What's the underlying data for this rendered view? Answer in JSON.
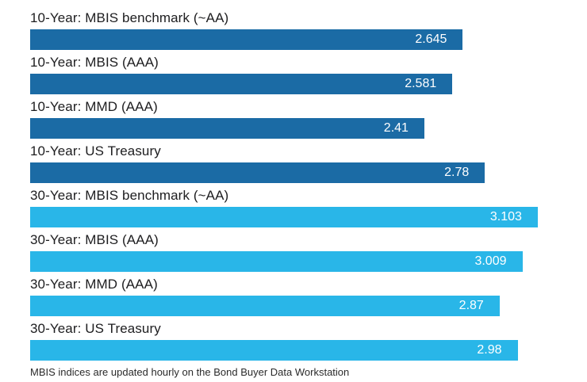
{
  "chart_data": {
    "type": "bar",
    "orientation": "horizontal",
    "title": "",
    "categories": [
      "10-Year: MBIS benchmark (~AA)",
      "10-Year: MBIS (AAA)",
      "10-Year: MMD (AAA)",
      "10-Year: US Treasury",
      "30-Year: MBIS benchmark (~AA)",
      "30-Year: MBIS (AAA)",
      "30-Year: MMD (AAA)",
      "30-Year: US Treasury"
    ],
    "values": [
      2.645,
      2.581,
      2.41,
      2.78,
      3.103,
      3.009,
      2.87,
      2.98
    ],
    "value_labels": [
      "2.645",
      "2.581",
      "2.41",
      "2.78",
      "3.103",
      "3.009",
      "2.87",
      "2.98"
    ],
    "bar_colors": [
      "#1b6ba5",
      "#1b6ba5",
      "#1b6ba5",
      "#1b6ba5",
      "#29b6e8",
      "#29b6e8",
      "#29b6e8",
      "#29b6e8"
    ],
    "series_colors": {
      "ten_year": "#1b6ba5",
      "thirty_year": "#29b6e8"
    },
    "xlim": [
      0,
      3.22
    ],
    "grid": false,
    "legend": "none",
    "footnote": "MBIS indices are updated hourly on the Bond Buyer Data Workstation"
  }
}
